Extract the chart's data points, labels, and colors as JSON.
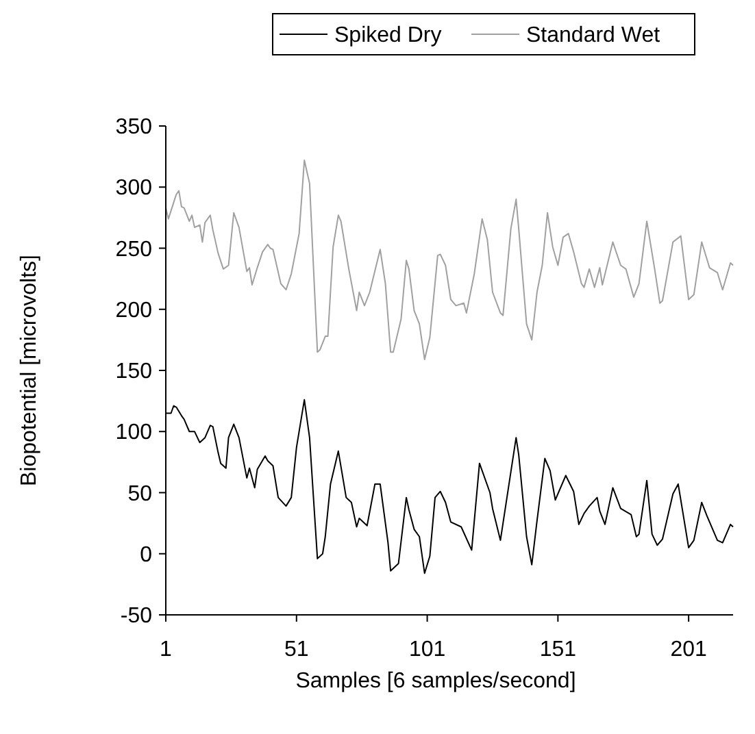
{
  "chart_data": {
    "type": "line",
    "xlabel": "Samples [6 samples/second]",
    "ylabel": "Biopotential [microvolts]",
    "xlim": [
      1,
      218
    ],
    "xticks": [
      1,
      51,
      101,
      151,
      201
    ],
    "ylim": [
      -50,
      350
    ],
    "yticks": [
      -50,
      0,
      50,
      100,
      150,
      200,
      250,
      300,
      350
    ],
    "grid": false,
    "legend": "top",
    "marker": "none",
    "line_style": "solid",
    "series": [
      {
        "name": "Spiked Dry",
        "color": "#000000",
        "x": [
          1,
          3,
          4,
          5,
          7,
          8,
          10,
          12,
          14,
          16,
          18,
          19,
          21,
          22,
          24,
          25,
          27,
          29,
          32,
          33,
          35,
          36,
          39,
          40,
          42,
          44,
          47,
          49,
          51,
          54,
          56,
          59,
          61,
          62,
          64,
          67,
          70,
          72,
          74,
          75,
          78,
          81,
          83,
          86,
          87,
          90,
          93,
          94,
          96,
          98,
          100,
          102,
          104,
          106,
          108,
          110,
          114,
          118,
          121,
          125,
          126,
          129,
          135,
          136,
          139,
          141,
          143,
          146,
          148,
          150,
          154,
          157,
          159,
          161,
          163,
          166,
          167,
          169,
          172,
          175,
          179,
          181,
          182,
          185,
          187,
          189,
          191,
          195,
          197,
          201,
          203,
          206,
          208,
          212,
          214,
          217,
          218
        ],
        "values": [
          115,
          115,
          121,
          120,
          113,
          110,
          100,
          100,
          91,
          95,
          105,
          104,
          83,
          74,
          70,
          95,
          106,
          95,
          62,
          70,
          54,
          69,
          80,
          76,
          72,
          46,
          39,
          46,
          87,
          126,
          95,
          -4,
          0,
          14,
          57,
          84,
          46,
          42,
          22,
          29,
          23,
          57,
          57,
          9,
          -14,
          -8,
          46,
          36,
          20,
          14,
          -16,
          -2,
          46,
          51,
          42,
          26,
          22,
          3,
          74,
          50,
          37,
          11,
          95,
          81,
          14,
          -9,
          27,
          78,
          68,
          44,
          64,
          51,
          24,
          33,
          39,
          46,
          35,
          24,
          54,
          37,
          32,
          14,
          16,
          60,
          16,
          7,
          12,
          49,
          57,
          5,
          11,
          42,
          31,
          11,
          9,
          24,
          22
        ]
      },
      {
        "name": "Standard Wet",
        "color": "#a0a0a0",
        "x": [
          1,
          2,
          5,
          6,
          7,
          8,
          10,
          11,
          12,
          14,
          15,
          16,
          18,
          19,
          21,
          23,
          25,
          27,
          29,
          32,
          33,
          34,
          36,
          38,
          40,
          41,
          42,
          45,
          47,
          49,
          52,
          54,
          56,
          59,
          60,
          62,
          63,
          65,
          67,
          68,
          71,
          74,
          75,
          77,
          79,
          83,
          85,
          87,
          88,
          91,
          93,
          94,
          96,
          98,
          100,
          102,
          105,
          106,
          108,
          110,
          112,
          115,
          116,
          119,
          122,
          124,
          126,
          129,
          130,
          133,
          135,
          136,
          139,
          141,
          143,
          145,
          147,
          149,
          151,
          153,
          155,
          157,
          160,
          161,
          163,
          165,
          167,
          168,
          172,
          175,
          177,
          180,
          182,
          185,
          188,
          190,
          191,
          195,
          198,
          201,
          203,
          206,
          209,
          212,
          214,
          217,
          218
        ],
        "values": [
          283,
          274,
          294,
          297,
          284,
          283,
          272,
          277,
          267,
          269,
          255,
          271,
          277,
          265,
          246,
          233,
          236,
          279,
          267,
          231,
          234,
          220,
          234,
          247,
          253,
          250,
          249,
          221,
          216,
          229,
          262,
          322,
          303,
          165,
          167,
          178,
          178,
          251,
          277,
          272,
          233,
          199,
          214,
          203,
          214,
          249,
          221,
          165,
          165,
          192,
          240,
          233,
          199,
          188,
          159,
          177,
          244,
          245,
          236,
          208,
          203,
          205,
          197,
          229,
          274,
          257,
          214,
          197,
          195,
          266,
          290,
          266,
          188,
          175,
          214,
          236,
          279,
          251,
          236,
          259,
          262,
          247,
          221,
          218,
          233,
          218,
          234,
          220,
          255,
          236,
          233,
          210,
          221,
          272,
          233,
          205,
          207,
          255,
          260,
          208,
          212,
          255,
          234,
          230,
          216,
          238,
          236
        ]
      }
    ]
  }
}
